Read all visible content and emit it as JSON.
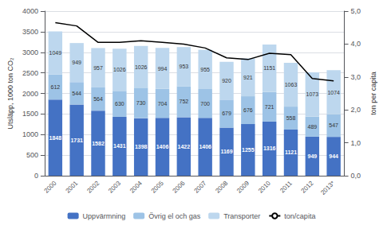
{
  "chart_data": {
    "type": "bar",
    "stacked": true,
    "categories": [
      "2000",
      "2001",
      "2002",
      "2003",
      "2004",
      "2005",
      "2006",
      "2007",
      "2008",
      "2009",
      "2010",
      "2011",
      "2012",
      "2013*"
    ],
    "series": [
      {
        "name": "Uppvärmning",
        "type": "bar",
        "color": "#4472C4",
        "data_labels": true,
        "values": [
          1848,
          1731,
          1582,
          1431,
          1398,
          1406,
          1422,
          1406,
          1169,
          1255,
          1316,
          1121,
          949,
          944
        ]
      },
      {
        "name": "Övrig el och gas",
        "type": "bar",
        "color": "#9DC3E6",
        "data_labels": true,
        "values": [
          612,
          544,
          564,
          630,
          730,
          704,
          752,
          700,
          679,
          676,
          721,
          558,
          489,
          547
        ]
      },
      {
        "name": "Transporter",
        "type": "bar",
        "color": "#BDD7EE",
        "data_labels": true,
        "values": [
          1049,
          949,
          957,
          1026,
          1026,
          994,
          953,
          955,
          920,
          921,
          1151,
          1063,
          1073,
          1074
        ]
      },
      {
        "name": "ton/capita",
        "type": "line",
        "color": "black",
        "axis": "y2",
        "values": [
          4.65,
          4.55,
          4.05,
          4.05,
          4.1,
          4.05,
          4.0,
          3.88,
          3.58,
          3.53,
          3.72,
          3.68,
          2.95,
          2.88
        ]
      }
    ],
    "ylabel": "Utsläpp, 1000 ton CO₂",
    "y2label": "ton per capita",
    "ylim": [
      0,
      4000
    ],
    "yticks": [
      0,
      500,
      1000,
      1500,
      2000,
      2500,
      3000,
      3500,
      4000
    ],
    "y2lim": [
      0.0,
      5.0
    ],
    "y2ticks": [
      {
        "value": 0.0,
        "label": "0,0"
      },
      {
        "value": 1.0,
        "label": "1,0"
      },
      {
        "value": 2.0,
        "label": "2,0"
      },
      {
        "value": 3.0,
        "label": "3,0"
      },
      {
        "value": 4.0,
        "label": "4,0"
      },
      {
        "value": 5.0,
        "label": "5,0"
      }
    ],
    "grid": true,
    "legend": "bottom"
  }
}
